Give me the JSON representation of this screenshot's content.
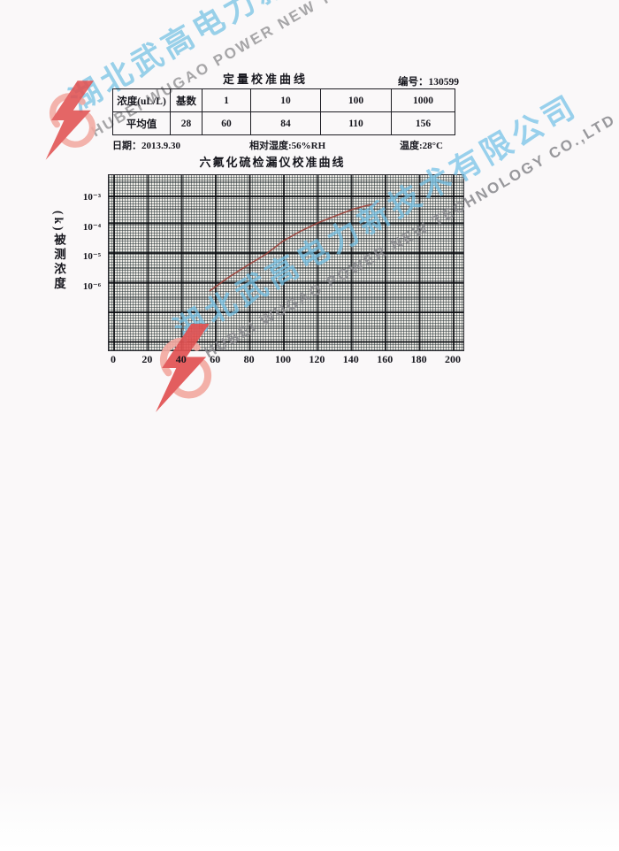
{
  "document": {
    "title": "定量校准曲线",
    "serial": "编号：130599",
    "date": "日期：2013.9.30",
    "humidity": "相对湿度:56%RH",
    "temperature": "温度:28°C"
  },
  "table": {
    "header_row": [
      "浓度(uL/L)",
      "基数",
      "1",
      "10",
      "100",
      "1000"
    ],
    "value_row": [
      "平均值",
      "28",
      "60",
      "84",
      "110",
      "156"
    ]
  },
  "chart_data": {
    "type": "line",
    "title": "六氟化硫检漏仪校准曲线",
    "xlabel": "",
    "ylabel": "(k)被测浓度",
    "x_ticks": [
      0,
      20,
      40,
      60,
      80,
      100,
      120,
      140,
      160,
      180,
      200
    ],
    "y_tick_labels": [
      "10⁻³",
      "10⁻⁴",
      "10⁻⁵",
      "10⁻⁶"
    ],
    "y_scale": "log",
    "xlim": [
      -3,
      206
    ],
    "ylim": [
      1e-08,
      0.006
    ],
    "grid": "dense log graph paper, major vertical line every 20 units, major horizontal line every decade",
    "legend_position": "none",
    "series": [
      {
        "name": "六氟化硫检漏仪校准曲线",
        "color": "#9c4038",
        "points": [
          [
            57,
            7e-07
          ],
          [
            68,
            2e-06
          ],
          [
            79,
            5e-06
          ],
          [
            90,
            1.2e-05
          ],
          [
            100,
            3.3e-05
          ],
          [
            110,
            7e-05
          ],
          [
            121,
            0.00014
          ],
          [
            132,
            0.00025
          ],
          [
            142,
            0.00041
          ],
          [
            149,
            0.00052
          ],
          [
            156,
            0.00062
          ]
        ]
      }
    ]
  },
  "watermarks": {
    "top": {
      "cn": "湖北武高电力新技术",
      "en": "HUBEI WUGAO POWER NEW TECHNOLOGY"
    },
    "middle": {
      "cn": "湖北武高电力新技术有限公司",
      "en": "HUBEI WUGAO POWER NEW TECHNOLOGY CO.,LTD"
    },
    "blue_color": "#7cc4e4",
    "gray_color": "#9b9b9e"
  },
  "logo": {
    "name": "hubei-wugao-emblem",
    "bolt_color": "#e25252",
    "hook_color": "#f3aaa2"
  }
}
